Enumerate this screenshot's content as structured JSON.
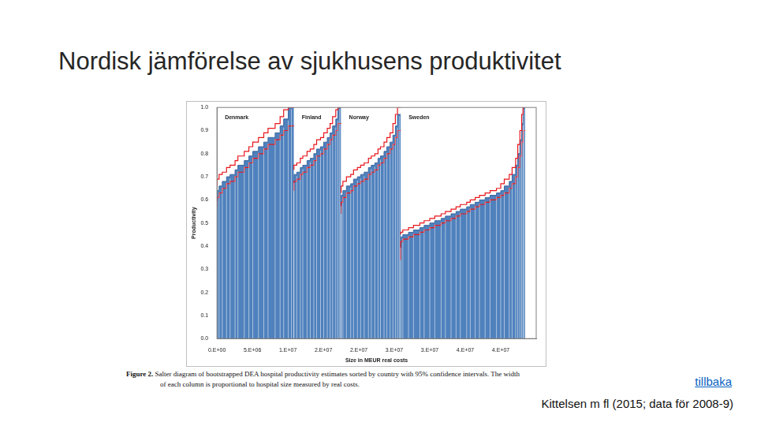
{
  "slide": {
    "title": "Nordisk jämförelse av sjukhusens produktivitet",
    "caption": [
      "Figure 2. Salter diagram of bootstrapped DEA hospital productivity estimates sorted by country with 95% confidence intervals. The width",
      "of each column is proportional to hospital size measured by real costs."
    ],
    "link": "tillbaka",
    "source": "Kittelsen m fl (2015; data för 2008-9)"
  },
  "chart_data": {
    "type": "bar",
    "x_label": "Size in MEUR real costs",
    "y_label": "Productivity",
    "xlim": [
      0,
      45000000
    ],
    "xticks": [
      {
        "value": 0,
        "label": "0.E+00"
      },
      {
        "value": 5000000,
        "label": "5.E+06"
      },
      {
        "value": 10000000,
        "label": "1.E+07"
      },
      {
        "value": 15000000,
        "label": "2.E+07"
      },
      {
        "value": 20000000,
        "label": "2.E+07"
      },
      {
        "value": 25000000,
        "label": "3.E+07"
      },
      {
        "value": 30000000,
        "label": "3.E+07"
      },
      {
        "value": 35000000,
        "label": "4.E+07"
      },
      {
        "value": 40000000,
        "label": "4.E+07"
      }
    ],
    "ylim": [
      0,
      1
    ],
    "yticks": [
      {
        "value": 0,
        "label": "0.0"
      },
      0.1,
      0.2,
      0.3,
      0.4,
      0.5,
      0.6,
      0.7,
      0.8,
      0.9,
      {
        "value": 1,
        "label": "1.0"
      }
    ],
    "grid": false,
    "series": [
      {
        "name": "Denmark",
        "color": "#4f81bd",
        "sizes": [
          300000,
          450000,
          600000,
          500000,
          700000,
          400000,
          900000,
          650000,
          550000,
          800000,
          750000,
          600000,
          1000000,
          700000,
          500000,
          650000,
          450000,
          350000
        ],
        "values": [
          0.6,
          0.64,
          0.66,
          0.68,
          0.7,
          0.71,
          0.73,
          0.75,
          0.77,
          0.79,
          0.81,
          0.83,
          0.85,
          0.87,
          0.89,
          0.92,
          0.95,
          1.0
        ],
        "ci_lower": [
          0.57,
          0.61,
          0.63,
          0.65,
          0.67,
          0.68,
          0.7,
          0.72,
          0.74,
          0.76,
          0.78,
          0.8,
          0.82,
          0.84,
          0.86,
          0.88,
          0.9,
          0.92
        ],
        "ci_upper": [
          0.66,
          0.69,
          0.71,
          0.72,
          0.74,
          0.75,
          0.77,
          0.79,
          0.81,
          0.83,
          0.85,
          0.87,
          0.89,
          0.91,
          0.93,
          0.96,
          0.99,
          1.0
        ]
      },
      {
        "name": "Finland",
        "color": "#4f81bd",
        "sizes": [
          400000,
          500000,
          350000,
          600000,
          450000,
          500000,
          400000,
          550000,
          450000,
          500000,
          400000,
          350000,
          450000,
          300000,
          250000,
          200000
        ],
        "values": [
          0.68,
          0.71,
          0.72,
          0.74,
          0.75,
          0.77,
          0.78,
          0.8,
          0.82,
          0.83,
          0.85,
          0.87,
          0.89,
          0.92,
          0.95,
          1.0
        ],
        "ci_lower": [
          0.64,
          0.68,
          0.69,
          0.71,
          0.72,
          0.74,
          0.75,
          0.77,
          0.79,
          0.8,
          0.82,
          0.84,
          0.86,
          0.88,
          0.9,
          0.93
        ],
        "ci_upper": [
          0.73,
          0.75,
          0.76,
          0.78,
          0.79,
          0.81,
          0.82,
          0.84,
          0.86,
          0.87,
          0.89,
          0.91,
          0.93,
          0.96,
          0.99,
          1.0
        ]
      },
      {
        "name": "Norway",
        "color": "#4f81bd",
        "sizes": [
          250000,
          500000,
          600000,
          400000,
          550000,
          450000,
          500000,
          600000,
          400000,
          500000,
          450000,
          350000,
          500000,
          400000,
          450000,
          400000,
          350000,
          300000,
          250000,
          200000
        ],
        "values": [
          0.58,
          0.62,
          0.64,
          0.66,
          0.67,
          0.69,
          0.7,
          0.71,
          0.72,
          0.74,
          0.75,
          0.76,
          0.78,
          0.79,
          0.81,
          0.83,
          0.85,
          0.88,
          0.92,
          0.97
        ],
        "ci_lower": [
          0.54,
          0.59,
          0.61,
          0.63,
          0.64,
          0.66,
          0.67,
          0.68,
          0.69,
          0.71,
          0.72,
          0.73,
          0.75,
          0.76,
          0.78,
          0.8,
          0.82,
          0.84,
          0.87,
          0.9
        ],
        "ci_upper": [
          0.63,
          0.66,
          0.68,
          0.7,
          0.71,
          0.73,
          0.74,
          0.75,
          0.76,
          0.78,
          0.79,
          0.8,
          0.82,
          0.83,
          0.85,
          0.87,
          0.89,
          0.93,
          0.97,
          1.0
        ]
      },
      {
        "name": "Sweden",
        "color": "#4f81bd",
        "sizes": [
          300000,
          800000,
          700000,
          900000,
          600000,
          800000,
          700000,
          900000,
          600000,
          800000,
          700000,
          600000,
          900000,
          500000,
          700000,
          600000,
          800000,
          700000,
          900000,
          600000,
          500000,
          700000,
          400000,
          500000,
          300000,
          300000,
          250000,
          200000,
          150000,
          150000
        ],
        "values": [
          0.4,
          0.44,
          0.45,
          0.46,
          0.47,
          0.48,
          0.49,
          0.5,
          0.51,
          0.52,
          0.53,
          0.54,
          0.55,
          0.56,
          0.57,
          0.58,
          0.59,
          0.6,
          0.61,
          0.62,
          0.63,
          0.64,
          0.66,
          0.68,
          0.71,
          0.75,
          0.8,
          0.86,
          0.93,
          1.0
        ],
        "ci_lower": [
          0.34,
          0.42,
          0.43,
          0.44,
          0.45,
          0.46,
          0.47,
          0.48,
          0.49,
          0.5,
          0.51,
          0.52,
          0.53,
          0.54,
          0.55,
          0.56,
          0.57,
          0.58,
          0.59,
          0.6,
          0.61,
          0.62,
          0.63,
          0.65,
          0.67,
          0.7,
          0.74,
          0.79,
          0.85,
          0.9
        ],
        "ci_upper": [
          0.45,
          0.46,
          0.47,
          0.48,
          0.49,
          0.5,
          0.51,
          0.52,
          0.53,
          0.54,
          0.55,
          0.56,
          0.57,
          0.58,
          0.59,
          0.6,
          0.61,
          0.62,
          0.63,
          0.64,
          0.65,
          0.67,
          0.69,
          0.71,
          0.74,
          0.78,
          0.84,
          0.9,
          0.97,
          1.0
        ]
      }
    ]
  }
}
